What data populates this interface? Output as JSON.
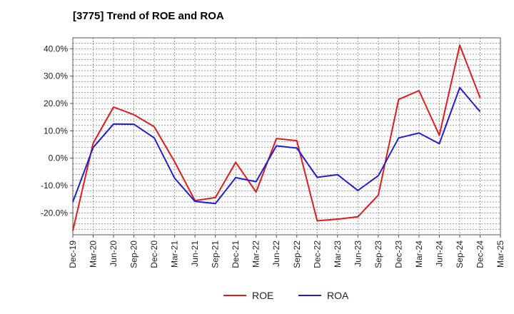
{
  "chart_data": {
    "type": "line",
    "title": "[3775]  Trend of ROE and ROA",
    "xlabel": "",
    "ylabel": "",
    "categories": [
      "Dec-19",
      "Mar-20",
      "Jun-20",
      "Sep-20",
      "Dec-20",
      "Mar-21",
      "Jun-21",
      "Sep-21",
      "Dec-21",
      "Mar-22",
      "Jun-22",
      "Sep-22",
      "Dec-22",
      "Mar-23",
      "Jun-23",
      "Sep-23",
      "Dec-23",
      "Mar-24",
      "Jun-24",
      "Sep-24",
      "Dec-24",
      "Mar-25"
    ],
    "ylim": [
      -28,
      44
    ],
    "yticks": [
      -20,
      -10,
      0,
      10,
      20,
      30,
      40
    ],
    "ytick_labels": [
      "-20.0%",
      "-10.0%",
      "0.0%",
      "10.0%",
      "20.0%",
      "30.0%",
      "40.0%"
    ],
    "grid": true,
    "legend": "bottom-center",
    "series": [
      {
        "name": "ROE",
        "color": "#e31a1c",
        "values": [
          -26.5,
          5.5,
          18.7,
          15.9,
          11.5,
          -1.3,
          -15.5,
          -14.4,
          -1.5,
          -12.4,
          7.2,
          6.4,
          -22.9,
          -22.3,
          -21.4,
          -13.5,
          21.5,
          24.7,
          8.4,
          41.3,
          22.1,
          null
        ]
      },
      {
        "name": "ROA",
        "color": "#1f1fd6",
        "values": [
          -16.0,
          3.9,
          12.5,
          12.4,
          7.4,
          -7.3,
          -15.8,
          -16.6,
          -7.1,
          -8.6,
          4.5,
          3.7,
          -7.0,
          -6.0,
          -11.8,
          -6.4,
          7.4,
          9.2,
          5.3,
          25.8,
          17.0,
          null
        ]
      }
    ]
  }
}
